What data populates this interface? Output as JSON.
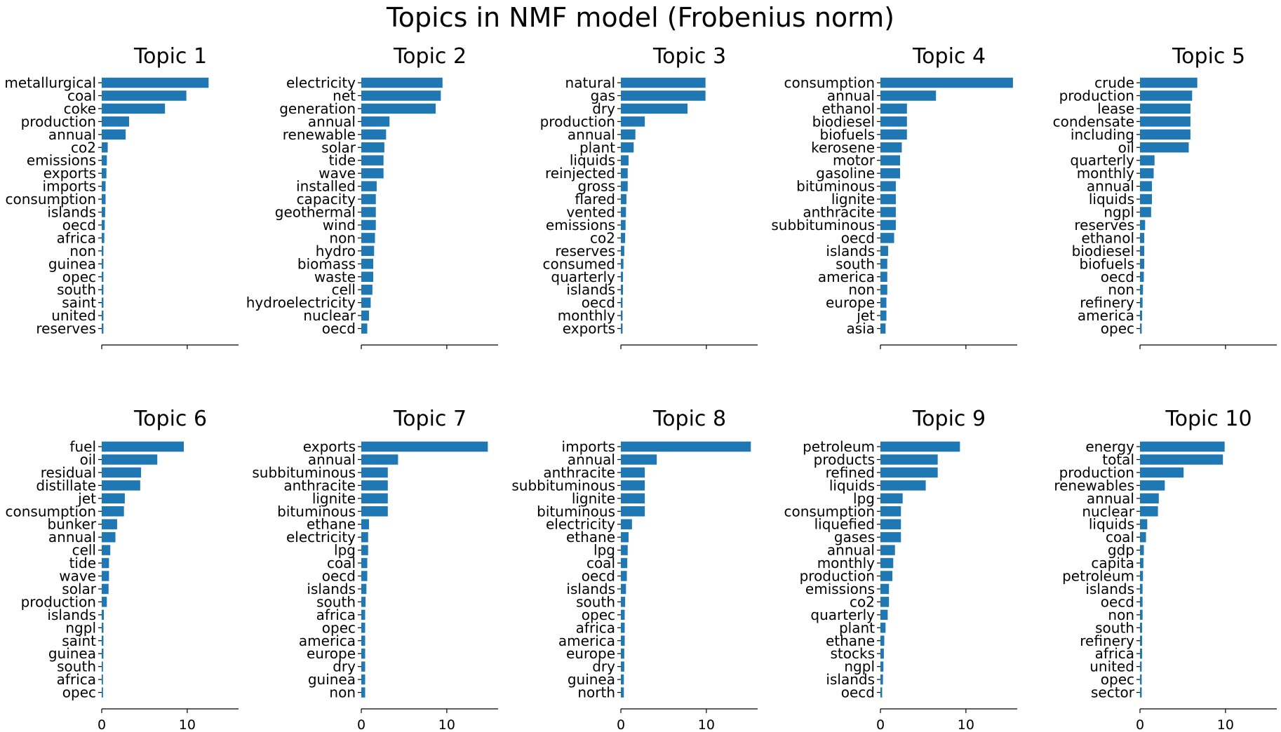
{
  "figure": {
    "title": "Topics in NMF model (Frobenius norm)"
  },
  "chart_data": [
    {
      "type": "bar",
      "orientation": "horizontal",
      "title": "Topic 1",
      "categories": [
        "metallurgical",
        "coal",
        "coke",
        "production",
        "annual",
        "co2",
        "emissions",
        "exports",
        "imports",
        "consumption",
        "islands",
        "oecd",
        "africa",
        "non",
        "guinea",
        "opec",
        "south",
        "saint",
        "united",
        "reserves"
      ],
      "values": [
        12.5,
        9.9,
        7.4,
        3.2,
        2.8,
        0.7,
        0.6,
        0.55,
        0.45,
        0.45,
        0.4,
        0.35,
        0.3,
        0.2,
        0.2,
        0.2,
        0.2,
        0.2,
        0.2,
        0.2
      ],
      "xlim": [
        0,
        16
      ],
      "xticks": [
        0,
        10
      ],
      "show_tick_labels": false
    },
    {
      "type": "bar",
      "orientation": "horizontal",
      "title": "Topic 2",
      "categories": [
        "electricity",
        "net",
        "generation",
        "annual",
        "renewable",
        "solar",
        "tide",
        "wave",
        "installed",
        "capacity",
        "geothermal",
        "wind",
        "non",
        "hydro",
        "biomass",
        "waste",
        "cell",
        "hydroelectricity",
        "nuclear",
        "oecd"
      ],
      "values": [
        9.5,
        9.3,
        8.7,
        3.3,
        2.9,
        2.7,
        2.6,
        2.6,
        1.8,
        1.7,
        1.7,
        1.7,
        1.6,
        1.5,
        1.4,
        1.4,
        1.3,
        1.1,
        0.9,
        0.7
      ],
      "xlim": [
        0,
        16
      ],
      "xticks": [
        0,
        10
      ],
      "show_tick_labels": false
    },
    {
      "type": "bar",
      "orientation": "horizontal",
      "title": "Topic 3",
      "categories": [
        "natural",
        "gas",
        "dry",
        "production",
        "annual",
        "plant",
        "liquids",
        "reinjected",
        "gross",
        "flared",
        "vented",
        "emissions",
        "co2",
        "reserves",
        "consumed",
        "quarterly",
        "islands",
        "oecd",
        "monthly",
        "exports"
      ],
      "values": [
        9.9,
        9.9,
        7.8,
        2.8,
        1.7,
        1.5,
        0.9,
        0.8,
        0.8,
        0.65,
        0.6,
        0.55,
        0.5,
        0.4,
        0.3,
        0.25,
        0.25,
        0.2,
        0.2,
        0.2
      ],
      "xlim": [
        0,
        16
      ],
      "xticks": [
        0,
        10
      ],
      "show_tick_labels": false
    },
    {
      "type": "bar",
      "orientation": "horizontal",
      "title": "Topic 4",
      "categories": [
        "consumption",
        "annual",
        "ethanol",
        "biodiesel",
        "biofuels",
        "kerosene",
        "motor",
        "gasoline",
        "bituminous",
        "lignite",
        "anthracite",
        "subbituminous",
        "oecd",
        "islands",
        "south",
        "america",
        "non",
        "europe",
        "jet",
        "asia"
      ],
      "values": [
        15.5,
        6.5,
        3.1,
        3.1,
        3.1,
        2.5,
        2.3,
        2.3,
        1.8,
        1.8,
        1.8,
        1.8,
        1.6,
        0.9,
        0.8,
        0.8,
        0.8,
        0.7,
        0.7,
        0.6
      ],
      "xlim": [
        0,
        16
      ],
      "xticks": [
        0,
        10
      ],
      "show_tick_labels": false
    },
    {
      "type": "bar",
      "orientation": "horizontal",
      "title": "Topic 5",
      "categories": [
        "crude",
        "production",
        "lease",
        "condensate",
        "including",
        "oil",
        "quarterly",
        "monthly",
        "annual",
        "liquids",
        "ngpl",
        "reserves",
        "ethanol",
        "biodiesel",
        "biofuels",
        "oecd",
        "non",
        "refinery",
        "america",
        "opec"
      ],
      "values": [
        6.7,
        6.1,
        5.9,
        5.9,
        5.9,
        5.7,
        1.7,
        1.6,
        1.4,
        1.4,
        1.3,
        0.6,
        0.5,
        0.5,
        0.5,
        0.45,
        0.35,
        0.3,
        0.25,
        0.2
      ],
      "xlim": [
        0,
        16
      ],
      "xticks": [
        0,
        10
      ],
      "show_tick_labels": false
    },
    {
      "type": "bar",
      "orientation": "horizontal",
      "title": "Topic 6",
      "categories": [
        "fuel",
        "oil",
        "residual",
        "distillate",
        "jet",
        "consumption",
        "bunker",
        "annual",
        "cell",
        "tide",
        "wave",
        "solar",
        "production",
        "islands",
        "ngpl",
        "saint",
        "guinea",
        "south",
        "africa",
        "opec"
      ],
      "values": [
        9.6,
        6.5,
        4.6,
        4.5,
        2.7,
        2.6,
        1.8,
        1.6,
        1.0,
        0.85,
        0.85,
        0.8,
        0.6,
        0.25,
        0.2,
        0.2,
        0.2,
        0.15,
        0.15,
        0.15
      ],
      "xlim": [
        0,
        16
      ],
      "xticks": [
        0,
        10
      ],
      "xticklabels": [
        "0",
        "10"
      ],
      "show_tick_labels": true
    },
    {
      "type": "bar",
      "orientation": "horizontal",
      "title": "Topic 7",
      "categories": [
        "exports",
        "annual",
        "subbituminous",
        "anthracite",
        "lignite",
        "bituminous",
        "ethane",
        "electricity",
        "lpg",
        "coal",
        "oecd",
        "islands",
        "south",
        "africa",
        "opec",
        "america",
        "europe",
        "dry",
        "guinea",
        "non"
      ],
      "values": [
        14.8,
        4.3,
        3.1,
        3.1,
        3.1,
        3.1,
        0.9,
        0.8,
        0.8,
        0.7,
        0.7,
        0.6,
        0.5,
        0.45,
        0.45,
        0.45,
        0.45,
        0.45,
        0.45,
        0.45
      ],
      "xlim": [
        0,
        16
      ],
      "xticks": [
        0,
        10
      ],
      "xticklabels": [
        "0",
        "10"
      ],
      "show_tick_labels": true
    },
    {
      "type": "bar",
      "orientation": "horizontal",
      "title": "Topic 8",
      "categories": [
        "imports",
        "annual",
        "anthracite",
        "subbituminous",
        "lignite",
        "bituminous",
        "electricity",
        "ethane",
        "lpg",
        "coal",
        "oecd",
        "islands",
        "south",
        "opec",
        "africa",
        "america",
        "europe",
        "dry",
        "guinea",
        "north"
      ],
      "values": [
        15.2,
        4.2,
        2.8,
        2.8,
        2.8,
        2.8,
        1.3,
        0.9,
        0.8,
        0.75,
        0.7,
        0.6,
        0.5,
        0.45,
        0.45,
        0.45,
        0.4,
        0.4,
        0.35,
        0.35
      ],
      "xlim": [
        0,
        16
      ],
      "xticks": [
        0,
        10
      ],
      "xticklabels": [
        "0",
        "10"
      ],
      "show_tick_labels": true
    },
    {
      "type": "bar",
      "orientation": "horizontal",
      "title": "Topic 9",
      "categories": [
        "petroleum",
        "products",
        "refined",
        "liquids",
        "lpg",
        "consumption",
        "liquefied",
        "gases",
        "annual",
        "monthly",
        "production",
        "emissions",
        "co2",
        "quarterly",
        "plant",
        "ethane",
        "stocks",
        "ngpl",
        "islands",
        "oecd"
      ],
      "values": [
        9.3,
        6.7,
        6.7,
        5.3,
        2.6,
        2.4,
        2.4,
        2.4,
        1.7,
        1.5,
        1.4,
        1.0,
        1.0,
        0.85,
        0.6,
        0.45,
        0.4,
        0.35,
        0.3,
        0.2
      ],
      "xlim": [
        0,
        16
      ],
      "xticks": [
        0,
        10
      ],
      "xticklabels": [
        "0",
        "10"
      ],
      "show_tick_labels": true
    },
    {
      "type": "bar",
      "orientation": "horizontal",
      "title": "Topic 10",
      "categories": [
        "energy",
        "total",
        "production",
        "renewables",
        "annual",
        "nuclear",
        "liquids",
        "coal",
        "gdp",
        "capita",
        "petroleum",
        "islands",
        "oecd",
        "non",
        "south",
        "refinery",
        "africa",
        "united",
        "opec",
        "sector"
      ],
      "values": [
        9.9,
        9.7,
        5.1,
        2.9,
        2.2,
        2.1,
        0.85,
        0.7,
        0.45,
        0.4,
        0.35,
        0.3,
        0.3,
        0.3,
        0.25,
        0.25,
        0.25,
        0.2,
        0.2,
        0.2
      ],
      "xlim": [
        0,
        16
      ],
      "xticks": [
        0,
        10
      ],
      "xticklabels": [
        "0",
        "10"
      ],
      "show_tick_labels": true
    }
  ],
  "colors": {
    "bar": "#1f77b4",
    "axis": "#000000",
    "background": "#ffffff"
  }
}
